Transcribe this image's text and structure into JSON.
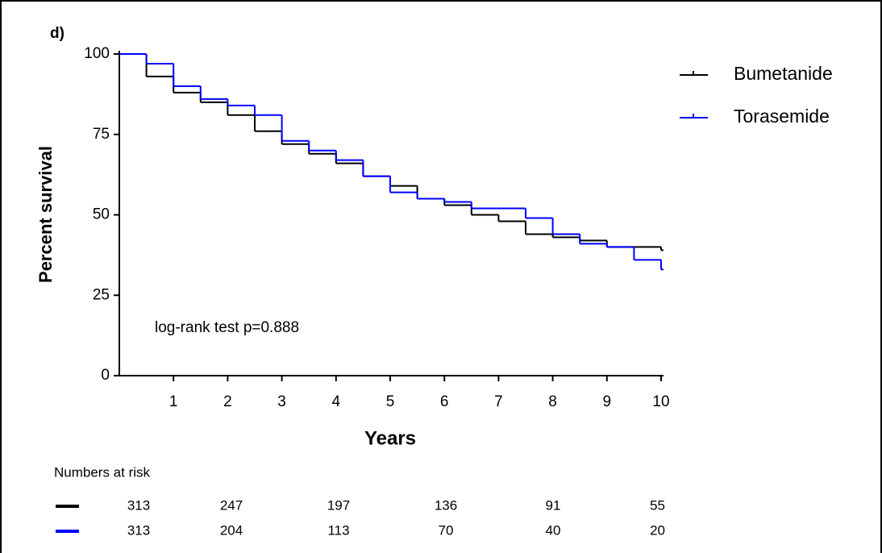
{
  "chart_data": {
    "type": "step",
    "panel_label": "d)",
    "x_label": "Years",
    "y_label": "Percent survival",
    "annotation": "log-rank test p=0.888",
    "x": [
      0,
      0.5,
      1,
      1.5,
      2,
      2.5,
      3,
      3.5,
      4,
      4.5,
      5,
      5.5,
      6,
      6.5,
      7,
      7.5,
      8,
      8.5,
      9,
      9.5,
      10
    ],
    "series": [
      {
        "name": "Bumetanide",
        "color": "#000000",
        "values": [
          100,
          93,
          88,
          85,
          81,
          76,
          72,
          69,
          66,
          62,
          59,
          55,
          53,
          50,
          48,
          44,
          43,
          42,
          40,
          40,
          39
        ]
      },
      {
        "name": "Torasemide",
        "color": "#0000ff",
        "values": [
          100,
          97,
          90,
          86,
          84,
          81,
          73,
          70,
          67,
          62,
          57,
          55,
          54,
          52,
          52,
          49,
          44,
          41,
          40,
          36,
          33
        ]
      }
    ],
    "xlim": [
      0,
      10
    ],
    "ylim": [
      0,
      100
    ],
    "xticks": [
      1,
      2,
      3,
      4,
      5,
      6,
      7,
      8,
      9,
      10
    ],
    "yticks": [
      0,
      25,
      50,
      75,
      100
    ],
    "legend": "top-right",
    "numbers_at_risk": {
      "title": "Numbers at risk",
      "rows": [
        {
          "color": "#000000",
          "values": [
            313,
            247,
            197,
            136,
            91,
            55
          ]
        },
        {
          "color": "#0000ff",
          "values": [
            313,
            204,
            113,
            70,
            40,
            20
          ]
        }
      ]
    }
  }
}
